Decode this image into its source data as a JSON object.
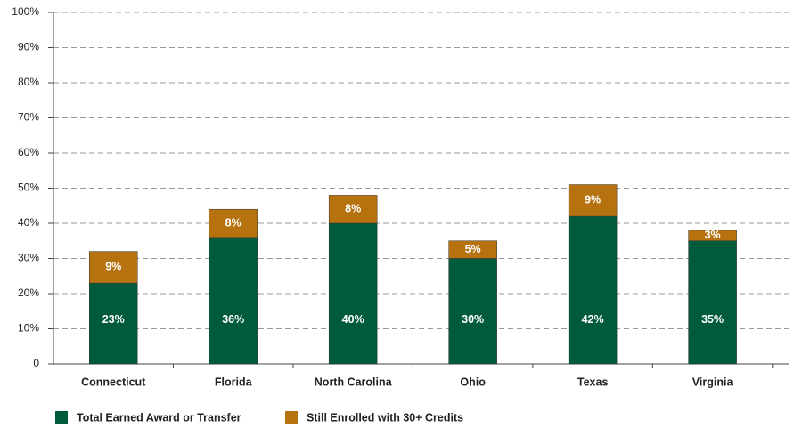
{
  "chart_data": {
    "type": "stacked_bar",
    "categories": [
      "Connecticut",
      "Florida",
      "North Carolina",
      "Ohio",
      "Texas",
      "Virginia"
    ],
    "series": [
      {
        "name": "Total Earned Award or Transfer",
        "color": "#005a3c",
        "values": [
          23,
          36,
          40,
          30,
          42,
          35
        ],
        "value_labels": [
          "23%",
          "36%",
          "40%",
          "30%",
          "42%",
          "35%"
        ]
      },
      {
        "name": "Still Enrolled with 30+ Credits",
        "color": "#b5720f",
        "values": [
          9,
          8,
          8,
          5,
          9,
          3
        ],
        "value_labels": [
          "9%",
          "8%",
          "8%",
          "5%",
          "9%",
          "3%"
        ]
      }
    ],
    "ylim": [
      0,
      100
    ],
    "yticks": [
      0,
      {
        "value": 10,
        "label": "10%"
      },
      {
        "value": 20,
        "label": "20%"
      },
      {
        "value": 30,
        "label": "30%"
      },
      {
        "value": 40,
        "label": "40%"
      },
      {
        "value": 50,
        "label": "50%"
      },
      {
        "value": 60,
        "label": "60%"
      },
      {
        "value": 70,
        "label": "70%"
      },
      {
        "value": 80,
        "label": "80%"
      },
      {
        "value": 90,
        "label": "90%"
      },
      {
        "value": 100,
        "label": "100%"
      }
    ],
    "grid": true,
    "legend": "bottom"
  }
}
